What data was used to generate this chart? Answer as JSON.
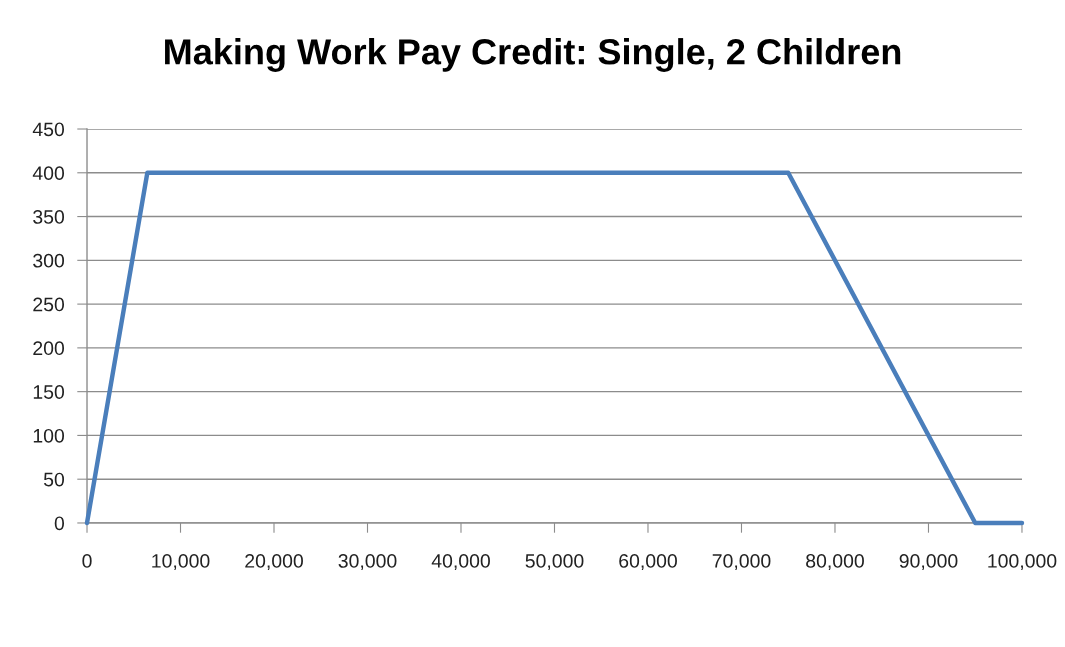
{
  "chart_data": {
    "type": "line",
    "title": "Making Work Pay Credit: Single, 2 Children",
    "x": [
      0,
      6450,
      75000,
      95000,
      100000
    ],
    "series": [
      {
        "color": "#4a7ebb",
        "values": [
          0,
          400,
          400,
          0,
          0
        ]
      }
    ],
    "xlim": [
      0,
      100000
    ],
    "xticks": [
      0,
      {
        "value": 10000,
        "label": "10,000"
      },
      {
        "value": 20000,
        "label": "20,000"
      },
      {
        "value": 30000,
        "label": "30,000"
      },
      {
        "value": 40000,
        "label": "40,000"
      },
      {
        "value": 50000,
        "label": "50,000"
      },
      {
        "value": 60000,
        "label": "60,000"
      },
      {
        "value": 70000,
        "label": "70,000"
      },
      {
        "value": 80000,
        "label": "80,000"
      },
      {
        "value": 90000,
        "label": "90,000"
      },
      {
        "value": 100000,
        "label": "100,000"
      }
    ],
    "ylim": [
      0,
      450
    ],
    "yticks": [
      0,
      50,
      100,
      150,
      200,
      250,
      300,
      350,
      400,
      450
    ],
    "grid": "y",
    "marker": "none",
    "line_style": "solid"
  }
}
